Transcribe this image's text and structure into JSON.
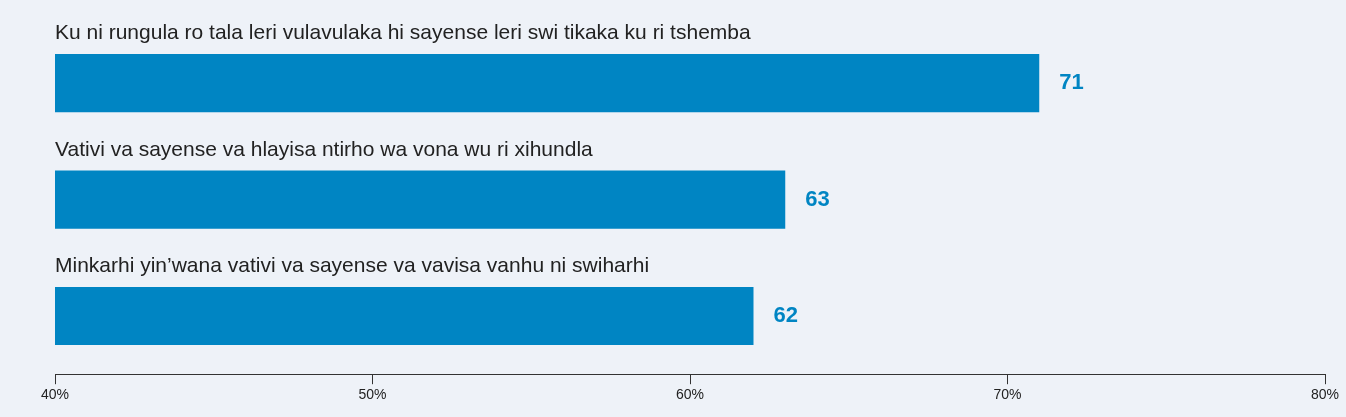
{
  "chart_data": {
    "type": "bar",
    "orientation": "horizontal",
    "categories": [
      "Ku ni rungula ro tala leri vulavulaka hi sayense leri swi tikaka ku ri tshemba",
      "Vativi va sayense va hlayisa ntirho wa vona wu ri xihundla",
      "Minkarhi yin’wana vativi va sayense va vavisa vanhu ni swiharhi"
    ],
    "values": [
      71,
      63,
      62
    ],
    "color": "#0085c3",
    "data_labels": true,
    "xlim": [
      40,
      80
    ],
    "xticks": [
      {
        "value": 40,
        "label": "40%"
      },
      {
        "value": 50,
        "label": "50%"
      },
      {
        "value": 60,
        "label": "60%"
      },
      {
        "value": 70,
        "label": "70%"
      },
      {
        "value": 80,
        "label": "80%"
      }
    ],
    "grid": false,
    "legend": false
  }
}
